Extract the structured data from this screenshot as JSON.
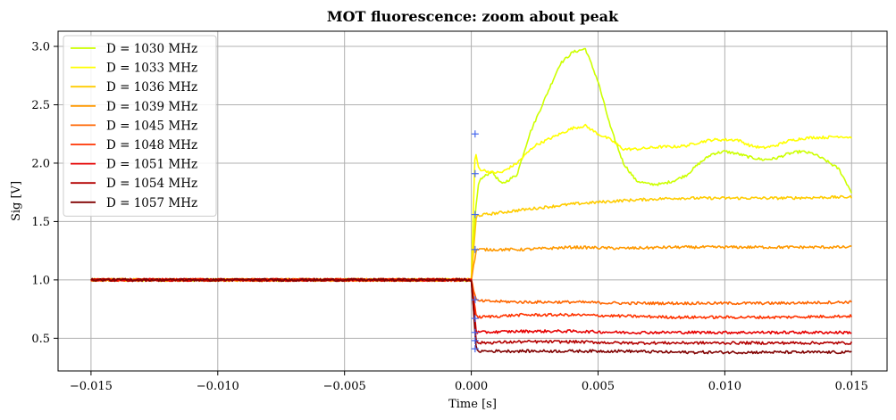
{
  "chart_data": {
    "type": "line",
    "title": "MOT fluorescence: zoom about peak",
    "xlabel": "Time [s]",
    "ylabel": "Sig [V]",
    "xlim": [
      -0.0163,
      0.0164
    ],
    "ylim": [
      0.22,
      3.13
    ],
    "xticks": [
      -0.015,
      -0.01,
      -0.005,
      0.0,
      0.005,
      0.01,
      0.015
    ],
    "xtick_labels": [
      "−0.015",
      "−0.010",
      "−0.005",
      "0.000",
      "0.005",
      "0.010",
      "0.015"
    ],
    "yticks": [
      0.5,
      1.0,
      1.5,
      2.0,
      2.5,
      3.0
    ],
    "ytick_labels": [
      "0.5",
      "1.0",
      "1.5",
      "2.0",
      "2.5",
      "3.0"
    ],
    "grid": true,
    "legend_position": "upper-left",
    "series": [
      {
        "name": "D = 1030 MHz",
        "color": "#ccff00",
        "points": [
          [
            -0.015,
            1.0
          ],
          [
            -0.006,
            1.0
          ],
          [
            0.0,
            1.0
          ],
          [
            0.00015,
            1.55
          ],
          [
            0.0003,
            1.85
          ],
          [
            0.0008,
            1.93
          ],
          [
            0.0012,
            1.82
          ],
          [
            0.0018,
            1.9
          ],
          [
            0.0023,
            2.25
          ],
          [
            0.003,
            2.6
          ],
          [
            0.0035,
            2.85
          ],
          [
            0.004,
            2.95
          ],
          [
            0.0045,
            2.98
          ],
          [
            0.005,
            2.7
          ],
          [
            0.0055,
            2.3
          ],
          [
            0.006,
            2.0
          ],
          [
            0.0065,
            1.85
          ],
          [
            0.007,
            1.82
          ],
          [
            0.0075,
            1.82
          ],
          [
            0.008,
            1.85
          ],
          [
            0.0085,
            1.9
          ],
          [
            0.009,
            2.0
          ],
          [
            0.0095,
            2.08
          ],
          [
            0.01,
            2.1
          ],
          [
            0.0105,
            2.08
          ],
          [
            0.011,
            2.05
          ],
          [
            0.0115,
            2.03
          ],
          [
            0.012,
            2.04
          ],
          [
            0.0125,
            2.08
          ],
          [
            0.013,
            2.1
          ],
          [
            0.0135,
            2.08
          ],
          [
            0.014,
            2.02
          ],
          [
            0.0145,
            1.95
          ],
          [
            0.015,
            1.75
          ]
        ]
      },
      {
        "name": "D = 1033 MHz",
        "color": "#ffff00",
        "points": [
          [
            -0.015,
            1.0
          ],
          [
            -0.006,
            1.0
          ],
          [
            0.0,
            1.0
          ],
          [
            0.00015,
            2.1
          ],
          [
            0.0003,
            1.95
          ],
          [
            0.0008,
            1.92
          ],
          [
            0.0012,
            1.92
          ],
          [
            0.0018,
            2.0
          ],
          [
            0.0025,
            2.15
          ],
          [
            0.003,
            2.2
          ],
          [
            0.0035,
            2.25
          ],
          [
            0.004,
            2.3
          ],
          [
            0.0045,
            2.32
          ],
          [
            0.005,
            2.25
          ],
          [
            0.0055,
            2.2
          ],
          [
            0.006,
            2.12
          ],
          [
            0.0065,
            2.12
          ],
          [
            0.007,
            2.13
          ],
          [
            0.0075,
            2.14
          ],
          [
            0.008,
            2.14
          ],
          [
            0.0085,
            2.15
          ],
          [
            0.009,
            2.18
          ],
          [
            0.0095,
            2.2
          ],
          [
            0.01,
            2.2
          ],
          [
            0.0105,
            2.2
          ],
          [
            0.011,
            2.15
          ],
          [
            0.0115,
            2.13
          ],
          [
            0.012,
            2.15
          ],
          [
            0.0125,
            2.19
          ],
          [
            0.013,
            2.21
          ],
          [
            0.0135,
            2.22
          ],
          [
            0.014,
            2.22
          ],
          [
            0.0145,
            2.23
          ],
          [
            0.015,
            2.22
          ]
        ]
      },
      {
        "name": "D = 1036 MHz",
        "color": "#ffcc00",
        "points": [
          [
            -0.015,
            1.0
          ],
          [
            0.0,
            1.0
          ],
          [
            0.0002,
            1.55
          ],
          [
            0.002,
            1.6
          ],
          [
            0.004,
            1.65
          ],
          [
            0.006,
            1.68
          ],
          [
            0.008,
            1.7
          ],
          [
            0.01,
            1.7
          ],
          [
            0.012,
            1.7
          ],
          [
            0.015,
            1.71
          ]
        ]
      },
      {
        "name": "D = 1039 MHz",
        "color": "#ff9900",
        "points": [
          [
            -0.015,
            1.0
          ],
          [
            0.0,
            1.0
          ],
          [
            0.0002,
            1.26
          ],
          [
            0.002,
            1.26
          ],
          [
            0.004,
            1.28
          ],
          [
            0.006,
            1.27
          ],
          [
            0.008,
            1.28
          ],
          [
            0.01,
            1.28
          ],
          [
            0.012,
            1.28
          ],
          [
            0.015,
            1.28
          ]
        ]
      },
      {
        "name": "D = 1045 MHz",
        "color": "#ff6600",
        "points": [
          [
            -0.015,
            1.0
          ],
          [
            0.0,
            1.0
          ],
          [
            0.0002,
            0.82
          ],
          [
            0.002,
            0.81
          ],
          [
            0.004,
            0.81
          ],
          [
            0.006,
            0.8
          ],
          [
            0.008,
            0.8
          ],
          [
            0.01,
            0.8
          ],
          [
            0.012,
            0.8
          ],
          [
            0.015,
            0.81
          ]
        ]
      },
      {
        "name": "D = 1048 MHz",
        "color": "#ff3300",
        "points": [
          [
            -0.015,
            1.0
          ],
          [
            0.0,
            1.0
          ],
          [
            0.0002,
            0.68
          ],
          [
            0.002,
            0.7
          ],
          [
            0.004,
            0.7
          ],
          [
            0.006,
            0.69
          ],
          [
            0.008,
            0.68
          ],
          [
            0.01,
            0.68
          ],
          [
            0.012,
            0.68
          ],
          [
            0.015,
            0.69
          ]
        ]
      },
      {
        "name": "D = 1051 MHz",
        "color": "#e60000",
        "points": [
          [
            -0.015,
            1.0
          ],
          [
            0.0,
            1.0
          ],
          [
            0.0002,
            0.55
          ],
          [
            0.002,
            0.56
          ],
          [
            0.004,
            0.56
          ],
          [
            0.006,
            0.55
          ],
          [
            0.008,
            0.55
          ],
          [
            0.01,
            0.55
          ],
          [
            0.012,
            0.55
          ],
          [
            0.015,
            0.55
          ]
        ]
      },
      {
        "name": "D = 1054 MHz",
        "color": "#b30000",
        "points": [
          [
            -0.015,
            1.0
          ],
          [
            0.0,
            1.0
          ],
          [
            0.0002,
            0.46
          ],
          [
            0.002,
            0.47
          ],
          [
            0.004,
            0.47
          ],
          [
            0.006,
            0.46
          ],
          [
            0.008,
            0.46
          ],
          [
            0.01,
            0.46
          ],
          [
            0.012,
            0.46
          ],
          [
            0.015,
            0.46
          ]
        ]
      },
      {
        "name": "D = 1057 MHz",
        "color": "#800000",
        "points": [
          [
            -0.015,
            1.0
          ],
          [
            0.0,
            1.0
          ],
          [
            0.0002,
            0.39
          ],
          [
            0.002,
            0.39
          ],
          [
            0.004,
            0.39
          ],
          [
            0.006,
            0.39
          ],
          [
            0.008,
            0.38
          ],
          [
            0.01,
            0.38
          ],
          [
            0.012,
            0.38
          ],
          [
            0.015,
            0.38
          ]
        ]
      }
    ],
    "peak_markers": {
      "color": "#4466ee",
      "symbol": "+",
      "points": [
        [
          0.00015,
          2.25
        ],
        [
          0.00015,
          1.91
        ],
        [
          0.00015,
          1.56
        ],
        [
          0.00015,
          1.26
        ],
        [
          0.00015,
          0.83
        ],
        [
          0.00015,
          0.67
        ],
        [
          0.00015,
          0.55
        ],
        [
          0.00015,
          0.48
        ],
        [
          0.00015,
          0.41
        ]
      ]
    }
  }
}
